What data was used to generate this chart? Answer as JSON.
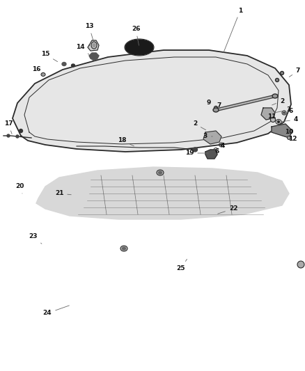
{
  "background_color": "#ffffff",
  "line_color": "#2a2a2a",
  "label_fontsize": 6.5,
  "text_color": "#111111"
}
